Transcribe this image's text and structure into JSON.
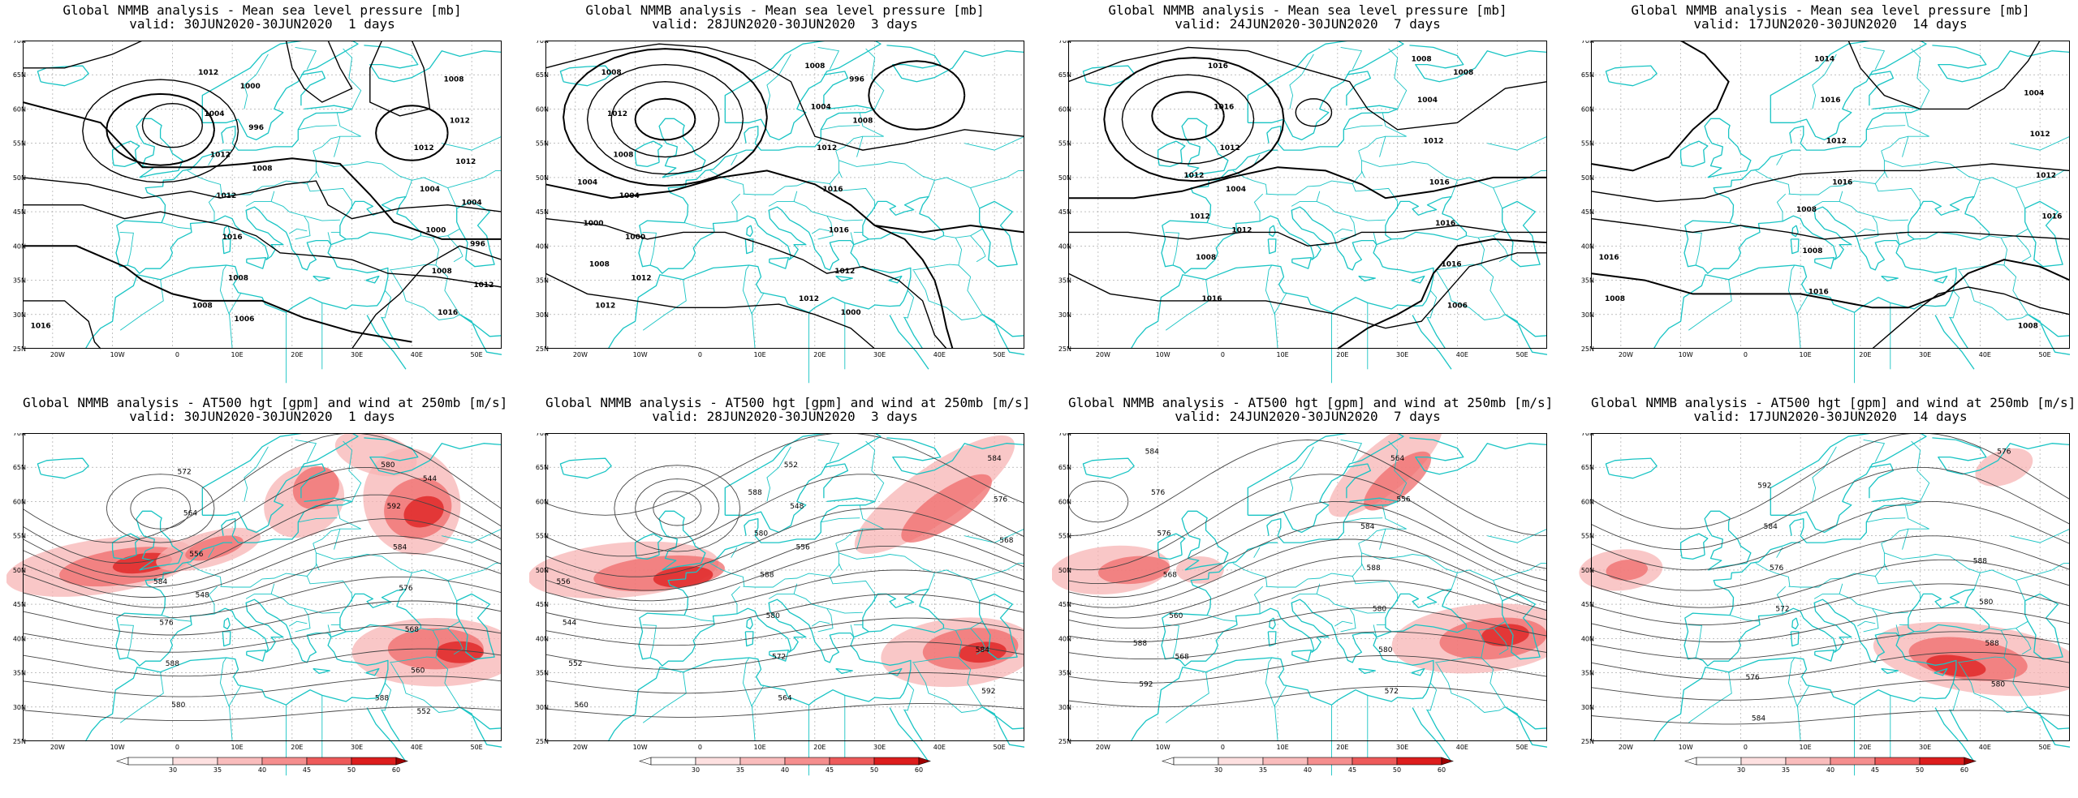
{
  "colors": {
    "coast": "#19c4c4",
    "grid": "#9a9a9a",
    "isobar": "#000000",
    "jet_light": "#f7b4b4",
    "jet_mid": "#ef6b6b",
    "jet_dark": "#dd1d1d"
  },
  "axes": {
    "lon_labels": [
      "20W",
      "10W",
      "0",
      "10E",
      "20E",
      "30E",
      "40E",
      "50E"
    ],
    "lat_labels": [
      "70N",
      "65N",
      "60N",
      "55N",
      "50N",
      "45N",
      "40N",
      "35N",
      "30N",
      "25N"
    ]
  },
  "colorbar": {
    "ticks": [
      "30",
      "35",
      "40",
      "45",
      "50",
      "60"
    ]
  },
  "top_row": [
    {
      "title1": "Global NMMB analysis - Mean sea level pressure [mb]",
      "title2": "valid: 30JUN2020-30JUN2020  1 days",
      "labels": [
        "1016",
        "1008",
        "1012",
        "996",
        "996",
        "1000",
        "1004",
        "1006",
        "1012",
        "1008",
        "1012",
        "1016",
        "1008",
        "1012",
        "1016",
        "1012",
        "1008",
        "1004",
        "1000",
        "1012",
        "1004",
        "1008",
        "1012"
      ]
    },
    {
      "title1": "Global NMMB analysis - Mean sea level pressure [mb]",
      "title2": "valid: 28JUN2020-30JUN2020  3 days",
      "labels": [
        "1012",
        "1008",
        "1000",
        "996",
        "1004",
        "1000",
        "1008",
        "1012",
        "1012",
        "1016",
        "1008",
        "1016",
        "1012",
        "1012",
        "1008",
        "1004",
        "1000",
        "1008",
        "1004",
        "1012"
      ]
    },
    {
      "title1": "Global NMMB analysis - Mean sea level pressure [mb]",
      "title2": "valid: 24JUN2020-30JUN2020  7 days",
      "labels": [
        "1012",
        "1008",
        "1004",
        "1006",
        "1012",
        "1016",
        "1016",
        "1016",
        "1016",
        "1016",
        "1016",
        "1012",
        "1008",
        "1004",
        "1012",
        "1008",
        "1012"
      ]
    },
    {
      "title1": "Global NMMB analysis - Mean sea level pressure [mb]",
      "title2": "valid: 17JUN2020-30JUN2020  14 days",
      "labels": [
        "1016",
        "1008",
        "1012",
        "1016",
        "1016",
        "1016",
        "1014",
        "1012",
        "1016",
        "1012",
        "1008",
        "1004",
        "1008",
        "1008"
      ]
    }
  ],
  "bottom_row": [
    {
      "title1": "Global NMMB analysis - AT500 hgt [gpm] and wind at 250mb [m/s]",
      "title2": "valid: 30JUN2020-30JUN2020  1 days",
      "labels": [
        "544",
        "548",
        "552",
        "556",
        "560",
        "564",
        "568",
        "572",
        "576",
        "580",
        "584",
        "588",
        "592",
        "576",
        "580",
        "584",
        "588"
      ]
    },
    {
      "title1": "Global NMMB analysis - AT500 hgt [gpm] and wind at 250mb [m/s]",
      "title2": "valid: 28JUN2020-30JUN2020  3 days",
      "labels": [
        "560",
        "556",
        "552",
        "548",
        "544",
        "552",
        "556",
        "564",
        "568",
        "572",
        "576",
        "580",
        "584",
        "588",
        "592",
        "580",
        "584",
        "588"
      ]
    },
    {
      "title1": "Global NMMB analysis - AT500 hgt [gpm] and wind at 250mb [m/s]",
      "title2": "valid: 24JUN2020-30JUN2020  7 days",
      "labels": [
        "568",
        "556",
        "560",
        "564",
        "568",
        "572",
        "576",
        "580",
        "576",
        "580",
        "584",
        "588",
        "592",
        "584",
        "588"
      ]
    },
    {
      "title1": "Global NMMB analysis - AT500 hgt [gpm] and wind at 250mb [m/s]",
      "title2": "valid: 17JUN2020-30JUN2020  14 days",
      "labels": [
        "572",
        "576",
        "576",
        "580",
        "584",
        "588",
        "592",
        "580",
        "584",
        "588",
        "576"
      ]
    }
  ]
}
